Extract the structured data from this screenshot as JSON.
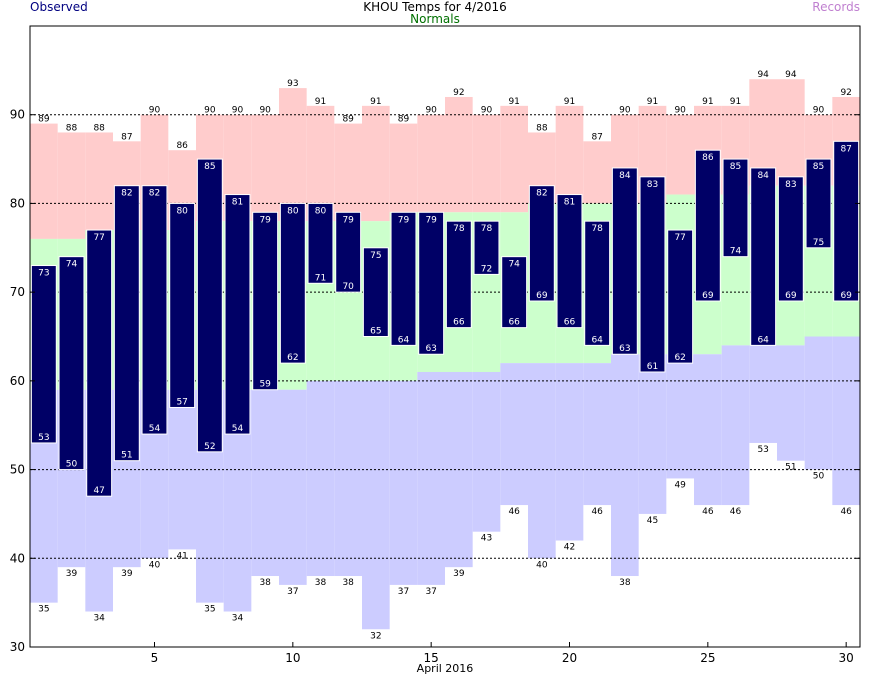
{
  "chart_data": {
    "type": "bar",
    "title": "KHOU Temps for 4/2016",
    "xlabel": "April 2016",
    "ylabel": "",
    "legend": [
      "Observed",
      "Normals",
      "Records"
    ],
    "legend_placement": "top",
    "grid": "horizontal dashed",
    "xlim": [
      0.5,
      30.5
    ],
    "ylim": [
      30,
      100
    ],
    "x_ticks": [
      "5",
      "10",
      "15",
      "20",
      "25",
      "30"
    ],
    "y_ticks": [
      "30",
      "40",
      "50",
      "60",
      "70",
      "80",
      "90"
    ],
    "days": [
      1,
      2,
      3,
      4,
      5,
      6,
      7,
      8,
      9,
      10,
      11,
      12,
      13,
      14,
      15,
      16,
      17,
      18,
      19,
      20,
      21,
      22,
      23,
      24,
      25,
      26,
      27,
      28,
      29,
      30
    ],
    "series": [
      {
        "name": "Observed",
        "key": "obs_high",
        "values": [
          73,
          74,
          77,
          82,
          82,
          80,
          85,
          81,
          79,
          80,
          80,
          79,
          75,
          79,
          79,
          78,
          78,
          74,
          82,
          81,
          78,
          84,
          83,
          77,
          86,
          85,
          84,
          83,
          85,
          87
        ]
      },
      {
        "name": "Observed",
        "key": "obs_low",
        "values": [
          53,
          50,
          47,
          51,
          54,
          57,
          52,
          54,
          59,
          62,
          71,
          70,
          65,
          64,
          63,
          66,
          72,
          66,
          69,
          66,
          64,
          63,
          61,
          62,
          69,
          74,
          64,
          69,
          75,
          69
        ]
      },
      {
        "name": "Normals",
        "key": "normal_high",
        "values": [
          76,
          76,
          77,
          77,
          77,
          77,
          78,
          78,
          78,
          78,
          78,
          78,
          78,
          79,
          79,
          79,
          79,
          79,
          80,
          80,
          80,
          80,
          80,
          81,
          81,
          81,
          82,
          82,
          82,
          82
        ]
      },
      {
        "name": "Normals",
        "key": "normal_low",
        "values": [
          59,
          59,
          59,
          59,
          59,
          59,
          59,
          59,
          59,
          59,
          60,
          60,
          60,
          60,
          61,
          61,
          61,
          62,
          62,
          62,
          62,
          63,
          63,
          63,
          63,
          64,
          64,
          64,
          65,
          65
        ]
      },
      {
        "name": "Records",
        "key": "record_high",
        "values": [
          89,
          88,
          88,
          87,
          90,
          86,
          90,
          90,
          90,
          93,
          91,
          89,
          91,
          89,
          90,
          92,
          90,
          91,
          88,
          91,
          87,
          90,
          91,
          90,
          91,
          91,
          94,
          94,
          90,
          92
        ]
      },
      {
        "name": "Records",
        "key": "record_low",
        "values": [
          35,
          39,
          34,
          39,
          40,
          41,
          35,
          34,
          38,
          37,
          38,
          38,
          32,
          37,
          37,
          39,
          43,
          46,
          40,
          42,
          46,
          38,
          45,
          49,
          46,
          46,
          53,
          51,
          50,
          46
        ]
      }
    ]
  },
  "colors": {
    "observed": "#000066",
    "normal": "#ccffcc",
    "record_high": "#ffcccc",
    "record_low": "#ccccff",
    "grid": "#000000"
  }
}
